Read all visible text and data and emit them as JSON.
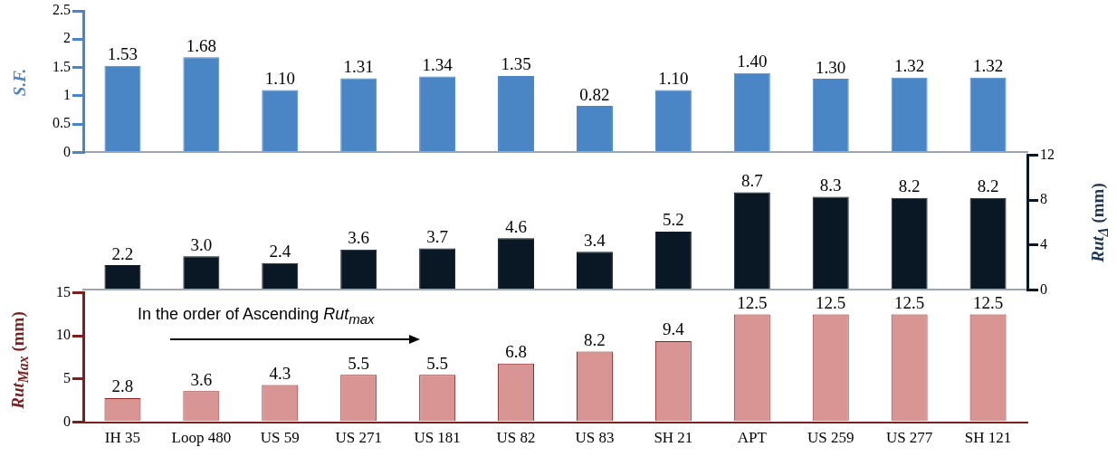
{
  "chart_data": [
    {
      "type": "bar",
      "ylabel": "S.F.",
      "categories": [
        null,
        null,
        null,
        null,
        null,
        null,
        null,
        null,
        null,
        null,
        null,
        null
      ],
      "values": [
        1.53,
        1.68,
        1.1,
        1.31,
        1.34,
        1.35,
        0.82,
        1.1,
        1.4,
        1.3,
        1.32,
        1.32
      ],
      "color": "#4a86c6",
      "value_labels": [
        "1.53",
        "1.68",
        "1.10",
        "1.31",
        "1.34",
        "1.35",
        "0.82",
        "1.10",
        "1.40",
        "1.30",
        "1.32",
        "1.32"
      ],
      "ylim": [
        0,
        2.5
      ],
      "yticks": [
        0,
        0.5,
        1,
        1.5,
        2,
        2.5
      ],
      "grid": false,
      "legend": false,
      "tick_labels": "y"
    },
    {
      "type": "bar",
      "ylabel": "Rut$_{Δ}$ (mm)",
      "categories": [
        null,
        null,
        null,
        null,
        null,
        null,
        null,
        null,
        null,
        null,
        null,
        null
      ],
      "values": [
        2.2,
        3.0,
        2.4,
        3.6,
        3.7,
        4.6,
        3.4,
        5.2,
        8.7,
        8.3,
        8.2,
        8.2
      ],
      "color": "#0a1724",
      "value_labels": [
        "2.2",
        "3.0",
        "2.4",
        "3.6",
        "3.7",
        "4.6",
        "3.4",
        "5.2",
        "8.7",
        "8.3",
        "8.2",
        "8.2"
      ],
      "ylim": [
        0,
        12
      ],
      "yticks": [
        0,
        4,
        8,
        12
      ],
      "grid": false,
      "legend": false,
      "tick_labels": "y"
    },
    {
      "type": "bar",
      "ylabel": "Rut$_{Max}$ (mm)",
      "categories": [
        "IH 35",
        "Loop 480",
        "US 59",
        "US 271",
        "US 181",
        "US 82",
        "US 83",
        "SH 21",
        "APT",
        "US 259",
        "US 277",
        "SH 121"
      ],
      "values": [
        2.8,
        3.6,
        4.3,
        5.5,
        5.5,
        6.8,
        8.2,
        9.4,
        12.5,
        12.5,
        12.5,
        12.5
      ],
      "color": "#d99594",
      "value_labels": [
        "2.8",
        "3.6",
        "4.3",
        "5.5",
        "5.5",
        "6.8",
        "8.2",
        "9.4",
        "12.5",
        "12.5",
        "12.5",
        "12.5"
      ],
      "ylim": [
        0,
        15
      ],
      "yticks": [
        0,
        5,
        10,
        15
      ],
      "grid": false,
      "legend": false,
      "annotations": [
        "In the order of Ascending Rut$_{max}$"
      ]
    }
  ]
}
